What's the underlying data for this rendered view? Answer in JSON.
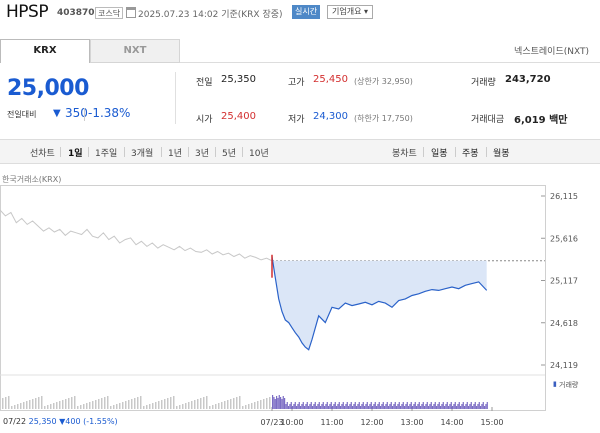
{
  "header": {
    "name": "HPSP",
    "code": "403870",
    "market": "코스닥",
    "as_of": "2025.07.23 14:02 기준(KRX 장중)",
    "realtime": "실시간",
    "company_overview": "기업개요 ▾"
  },
  "tabs": {
    "krx": "KRX",
    "nxt": "NXT",
    "nextrade_label": "넥스트레이드(NXT)"
  },
  "price": {
    "current": "25,000",
    "change_label": "전일대비",
    "change_arrow": "▼",
    "change_value": "350",
    "change_pct": "-1.38%"
  },
  "stats": {
    "prev_close": {
      "label": "전일",
      "value": "25,350"
    },
    "high": {
      "label": "고가",
      "value": "25,450",
      "note": "(상한가 32,950)"
    },
    "volume": {
      "label": "거래량",
      "value": "243,720"
    },
    "open": {
      "label": "시가",
      "value": "25,400"
    },
    "low": {
      "label": "저가",
      "value": "24,300",
      "note": "(하한가 17,750)"
    },
    "amount": {
      "label": "거래대금",
      "value": "6,019 백만"
    }
  },
  "period": {
    "line_chart": "선차트",
    "options": [
      "1일",
      "1주일",
      "3개월",
      "1년",
      "3년",
      "5년",
      "10년"
    ],
    "selected": "1일",
    "candle_chart": "봉차트",
    "candle_options": [
      "일봉",
      "주봉",
      "월봉"
    ]
  },
  "colors": {
    "up": "#d32f2f",
    "down": "#1a5bd1",
    "area": "#dbe6f7",
    "prev_line": "#c8c8c8"
  },
  "chart_data": {
    "type": "line",
    "title": "한국거래소(KRX)",
    "yticks": [
      "26,115",
      "25,616",
      "25,117",
      "24,618",
      "24,119"
    ],
    "ylim": [
      24119,
      26115
    ],
    "prev_close": 25350,
    "xticks": [
      "07/23",
      "10:00",
      "11:00",
      "12:00",
      "13:00",
      "14:00",
      "15:00"
    ],
    "xlim_minutes": [
      0,
      390
    ],
    "prev_day_label": "07/22",
    "volume_legend": "거래량",
    "series": [
      {
        "name": "07/22",
        "x_frac": [
          0,
          0.02,
          0.04,
          0.06,
          0.08,
          0.1,
          0.12,
          0.14,
          0.16,
          0.18,
          0.2,
          0.22,
          0.24,
          0.26,
          0.28,
          0.3,
          0.32,
          0.34,
          0.36,
          0.38,
          0.4,
          0.42,
          0.44,
          0.46,
          0.48,
          0.5,
          0.52,
          0.54,
          0.56,
          0.58,
          0.6,
          0.62,
          0.64,
          0.66,
          0.68,
          0.7,
          0.72,
          0.74,
          0.76,
          0.78,
          0.8,
          0.82,
          0.84,
          0.86,
          0.88,
          0.9,
          0.92,
          0.94,
          0.96,
          0.98,
          1.0
        ],
        "values": [
          25950,
          25880,
          25920,
          25800,
          25850,
          25780,
          25820,
          25760,
          25700,
          25740,
          25690,
          25720,
          25650,
          25700,
          25680,
          25660,
          25720,
          25640,
          25620,
          25680,
          25600,
          25640,
          25560,
          25600,
          25620,
          25540,
          25580,
          25520,
          25560,
          25500,
          25540,
          25510,
          25480,
          25520,
          25470,
          25500,
          25460,
          25450,
          25480,
          25430,
          25460,
          25420,
          25440,
          25400,
          25430,
          25380,
          25410,
          25390,
          25360,
          25380,
          25350
        ]
      },
      {
        "name": "07/23",
        "minutes": [
          0,
          5,
          10,
          15,
          20,
          25,
          30,
          35,
          40,
          45,
          50,
          55,
          60,
          70,
          80,
          90,
          100,
          110,
          120,
          130,
          140,
          150,
          160,
          170,
          180,
          190,
          200,
          210,
          220,
          230,
          240,
          250,
          260,
          270,
          280,
          290,
          300,
          310,
          322
        ],
        "values": [
          25400,
          25150,
          24900,
          24750,
          24650,
          24620,
          24560,
          24500,
          24450,
          24380,
          24330,
          24300,
          24420,
          24700,
          24620,
          24800,
          24780,
          24850,
          24820,
          24840,
          24860,
          24830,
          24870,
          24850,
          24800,
          24880,
          24900,
          24940,
          24960,
          24990,
          25010,
          25000,
          25020,
          25040,
          25020,
          25060,
          25080,
          25100,
          25000
        ]
      }
    ]
  }
}
